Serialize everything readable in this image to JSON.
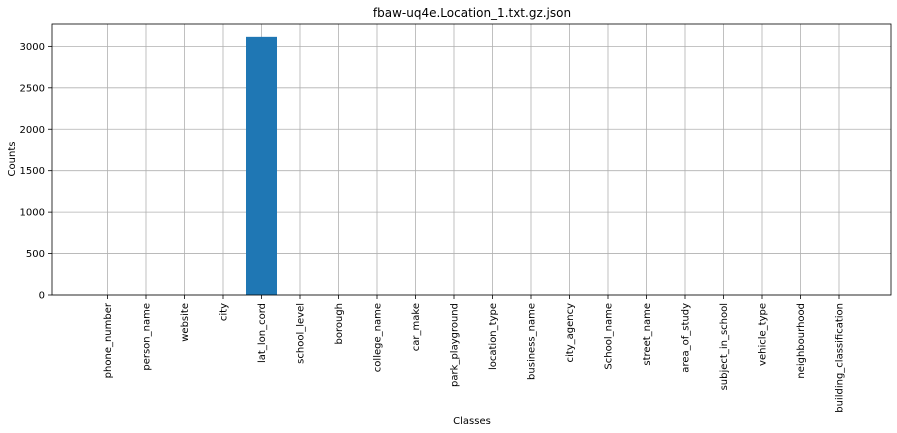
{
  "chart_data": {
    "type": "bar",
    "title": "fbaw-uq4e.Location_1.txt.gz.json",
    "xlabel": "Classes",
    "ylabel": "Counts",
    "categories": [
      "phone_number",
      "person_name",
      "website",
      "city",
      "lat_lon_cord",
      "school_level",
      "borough",
      "college_name",
      "car_make",
      "park_playground",
      "location_type",
      "business_name",
      "city_agency",
      "School_name",
      "street_name",
      "area_of_study",
      "subject_in_school",
      "vehicle_type",
      "neighbourhood",
      "building_classification"
    ],
    "values": [
      0,
      0,
      0,
      0,
      3115,
      0,
      0,
      0,
      0,
      0,
      0,
      0,
      0,
      0,
      0,
      0,
      0,
      0,
      0,
      0
    ],
    "yticks": [
      0,
      500,
      1000,
      1500,
      2000,
      2500,
      3000
    ],
    "ylim": [
      0,
      3270
    ],
    "grid": true,
    "bar_color": "#1f77b4"
  }
}
